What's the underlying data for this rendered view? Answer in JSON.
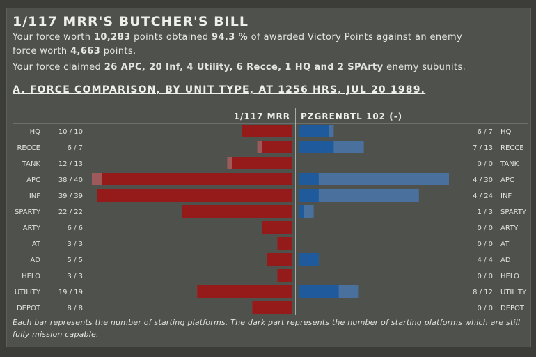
{
  "header": {
    "title": "1/117 MRR'S BUTCHER'S BILL",
    "line1": {
      "a": "Your force worth ",
      "points": "10,283",
      "b": " points obtained ",
      "vp": "94.3 %",
      "c": " of awarded Victory Points against an enemy"
    },
    "line2": {
      "a": "force worth ",
      "points": "4,663",
      "b": " points."
    },
    "line3": {
      "a": "Your force claimed ",
      "claims": "26 APC, 20 Inf, 4 Utility, 6 Recce, 1 HQ and 2 SPArty",
      "b": " enemy subunits."
    }
  },
  "section_title": "A. FORCE COMPARISON, BY UNIT TYPE, AT 1256 HRS, JUL 20 1989.",
  "caption": "Each bar represents the number of starting platforms. The dark part represents the number of starting platforms which are still fully mission capable.",
  "chart_data": {
    "type": "bar",
    "categories": [
      "HQ",
      "RECCE",
      "TANK",
      "APC",
      "INF",
      "SPARTY",
      "ARTY",
      "AT",
      "AD",
      "HELO",
      "UTILITY",
      "DEPOT"
    ],
    "series": [
      {
        "name": "1/117 MRR",
        "color_capable": "#951b1b",
        "color_lost": "#9e5a5a",
        "capable": [
          10,
          6,
          12,
          38,
          39,
          22,
          6,
          3,
          5,
          3,
          19,
          8
        ],
        "starting": [
          10,
          7,
          13,
          40,
          39,
          22,
          6,
          3,
          5,
          3,
          19,
          8
        ]
      },
      {
        "name": "PZGRENBTL 102 (-)",
        "color_capable": "#1f5a9c",
        "color_lost": "#4a719e",
        "capable": [
          6,
          7,
          0,
          4,
          4,
          1,
          0,
          0,
          4,
          0,
          8,
          0
        ],
        "starting": [
          7,
          13,
          0,
          30,
          24,
          3,
          0,
          0,
          4,
          0,
          12,
          0
        ]
      }
    ]
  }
}
